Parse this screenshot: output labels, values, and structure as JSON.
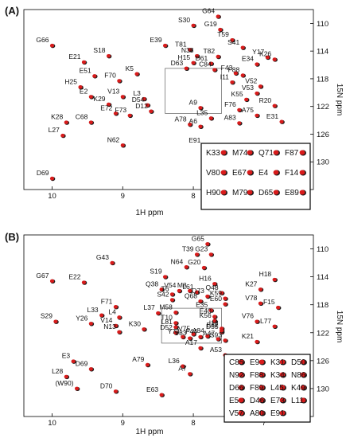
{
  "panels": [
    {
      "panel_label": "(A)",
      "chart_data": {
        "type": "scatter",
        "xlabel": "1H ppm",
        "ylabel": "15N ppm",
        "xlim": [
          10.4,
          6.3
        ],
        "ylim": [
          108,
          134
        ],
        "x_ticks": [
          "10",
          "9",
          "8",
          "7"
        ],
        "y_ticks": [
          "110",
          "114",
          "118",
          "122",
          "126",
          "130"
        ],
        "zoom_box": {
          "x": [
            8.4,
            7.6
          ],
          "y": [
            116.5,
            123
          ]
        },
        "peaks": [
          {
            "label": "G64",
            "x": 7.65,
            "y": 109.0
          },
          {
            "label": "S30",
            "x": 8.0,
            "y": 110.3
          },
          {
            "label": "G19",
            "x": 7.62,
            "y": 110.9
          },
          {
            "label": "T59",
            "x": 7.45,
            "y": 112.4
          },
          {
            "label": "G66",
            "x": 10.0,
            "y": 113.2
          },
          {
            "label": "E39",
            "x": 8.4,
            "y": 113.2
          },
          {
            "label": "T81",
            "x": 8.05,
            "y": 113.8
          },
          {
            "label": "S41",
            "x": 7.3,
            "y": 113.5
          },
          {
            "label": "Y17",
            "x": 6.95,
            "y": 114.9
          },
          {
            "label": "S18",
            "x": 9.2,
            "y": 114.7
          },
          {
            "label": "N38",
            "x": 7.95,
            "y": 114.7
          },
          {
            "label": "T82",
            "x": 7.65,
            "y": 114.8
          },
          {
            "label": "K26",
            "x": 6.85,
            "y": 115.2
          },
          {
            "label": "E21",
            "x": 9.55,
            "y": 115.6
          },
          {
            "label": "H15",
            "x": 8.0,
            "y": 115.7
          },
          {
            "label": "D61",
            "x": 7.75,
            "y": 115.8
          },
          {
            "label": "E34",
            "x": 7.1,
            "y": 115.9
          },
          {
            "label": "D63",
            "x": 8.1,
            "y": 116.5
          },
          {
            "label": "C84",
            "x": 7.7,
            "y": 116.7
          },
          {
            "label": "K5",
            "x": 8.8,
            "y": 117.3
          },
          {
            "label": "F43",
            "x": 7.4,
            "y": 117.2
          },
          {
            "label": "E51",
            "x": 9.4,
            "y": 117.6
          },
          {
            "label": "F88",
            "x": 7.3,
            "y": 117.5
          },
          {
            "label": "F70",
            "x": 9.05,
            "y": 118.3
          },
          {
            "label": "I11",
            "x": 7.45,
            "y": 118.5
          },
          {
            "label": "H25",
            "x": 9.6,
            "y": 119.2
          },
          {
            "label": "V52",
            "x": 7.05,
            "y": 119.1
          },
          {
            "label": "V53",
            "x": 7.1,
            "y": 120.1
          },
          {
            "label": "E2",
            "x": 9.45,
            "y": 120.6
          },
          {
            "label": "V13",
            "x": 9.0,
            "y": 120.6
          },
          {
            "label": "L3",
            "x": 8.7,
            "y": 120.9
          },
          {
            "label": "K55",
            "x": 7.25,
            "y": 121.0
          },
          {
            "label": "K29",
            "x": 9.2,
            "y": 121.7
          },
          {
            "label": "D54",
            "x": 8.65,
            "y": 121.8
          },
          {
            "label": "A9",
            "x": 7.9,
            "y": 122.2
          },
          {
            "label": "R20",
            "x": 6.85,
            "y": 121.9
          },
          {
            "label": "D12",
            "x": 8.6,
            "y": 122.7
          },
          {
            "label": "F76",
            "x": 7.35,
            "y": 122.5
          },
          {
            "label": "E72",
            "x": 9.1,
            "y": 123.0
          },
          {
            "label": "F73",
            "x": 8.9,
            "y": 123.3
          },
          {
            "label": "A75",
            "x": 7.1,
            "y": 123.3
          },
          {
            "label": "L35",
            "x": 7.75,
            "y": 123.7
          },
          {
            "label": "K28",
            "x": 9.8,
            "y": 124.3
          },
          {
            "label": "C68",
            "x": 9.45,
            "y": 124.3
          },
          {
            "label": "A78",
            "x": 8.05,
            "y": 124.6
          },
          {
            "label": "A6",
            "x": 7.9,
            "y": 124.9
          },
          {
            "label": "A83",
            "x": 7.35,
            "y": 124.4
          },
          {
            "label": "E31",
            "x": 6.75,
            "y": 124.2
          },
          {
            "label": "L27",
            "x": 9.85,
            "y": 126.2
          },
          {
            "label": "N62",
            "x": 9.0,
            "y": 127.6
          },
          {
            "label": "E91",
            "x": 7.85,
            "y": 127.7
          },
          {
            "label": "D69",
            "x": 10.0,
            "y": 132.4
          }
        ],
        "inset_labels": [
          "K33",
          "M74",
          "Q71",
          "F87",
          "V80",
          "E67",
          "E4",
          "F14",
          "H90",
          "M79",
          "D65",
          "E89"
        ]
      }
    },
    {
      "panel_label": "(B)",
      "chart_data": {
        "type": "scatter",
        "xlabel": "1H ppm",
        "ylabel": "15N ppm",
        "xlim": [
          10.4,
          6.3
        ],
        "ylim": [
          108,
          134
        ],
        "x_ticks": [
          "10",
          "9",
          "8",
          "7"
        ],
        "y_ticks": [
          "110",
          "114",
          "118",
          "122",
          "126",
          "130"
        ],
        "zoom_box": {
          "x": [
            8.45,
            7.6
          ],
          "y": [
            118.5,
            123.5
          ]
        },
        "peaks": [
          {
            "label": "G65",
            "x": 7.8,
            "y": 109.3
          },
          {
            "label": "T39",
            "x": 7.95,
            "y": 110.8
          },
          {
            "label": "G23",
            "x": 7.75,
            "y": 110.8
          },
          {
            "label": "G43",
            "x": 9.15,
            "y": 112.0
          },
          {
            "label": "N64",
            "x": 8.1,
            "y": 112.6
          },
          {
            "label": "G20",
            "x": 7.85,
            "y": 112.7
          },
          {
            "label": "S19",
            "x": 8.4,
            "y": 114.0
          },
          {
            "label": "H18",
            "x": 6.85,
            "y": 114.4
          },
          {
            "label": "G67",
            "x": 10.0,
            "y": 114.6
          },
          {
            "label": "E22",
            "x": 9.55,
            "y": 114.8
          },
          {
            "label": "H16",
            "x": 7.7,
            "y": 115.0
          },
          {
            "label": "K27",
            "x": 7.05,
            "y": 115.8
          },
          {
            "label": "Q38",
            "x": 8.45,
            "y": 115.8
          },
          {
            "label": "V54",
            "x": 8.2,
            "y": 116.0
          },
          {
            "label": "M8",
            "x": 8.05,
            "y": 116.0
          },
          {
            "label": "L61",
            "x": 7.95,
            "y": 116.2
          },
          {
            "label": "Q48",
            "x": 7.6,
            "y": 116.3
          },
          {
            "label": "T6",
            "x": 8.3,
            "y": 116.5
          },
          {
            "label": "Q73",
            "x": 7.8,
            "y": 116.8
          },
          {
            "label": "K59",
            "x": 7.55,
            "y": 117.1
          },
          {
            "label": "S42",
            "x": 8.3,
            "y": 117.3
          },
          {
            "label": "Q68",
            "x": 7.9,
            "y": 117.5
          },
          {
            "label": "E60",
            "x": 7.55,
            "y": 117.9
          },
          {
            "label": "V78",
            "x": 7.05,
            "y": 117.8
          },
          {
            "label": "F71",
            "x": 9.1,
            "y": 118.3
          },
          {
            "label": "F15",
            "x": 6.8,
            "y": 118.4
          },
          {
            "label": "L37",
            "x": 8.5,
            "y": 119.2
          },
          {
            "label": "M58",
            "x": 8.25,
            "y": 119.1
          },
          {
            "label": "E35",
            "x": 7.75,
            "y": 118.8
          },
          {
            "label": "L33",
            "x": 9.3,
            "y": 119.5
          },
          {
            "label": "L4",
            "x": 9.05,
            "y": 119.8
          },
          {
            "label": "E40",
            "x": 7.7,
            "y": 119.7
          },
          {
            "label": "S29",
            "x": 9.95,
            "y": 120.4
          },
          {
            "label": "Y26",
            "x": 9.45,
            "y": 120.7
          },
          {
            "label": "V14",
            "x": 9.1,
            "y": 121.0
          },
          {
            "label": "K30",
            "x": 8.7,
            "y": 121.5
          },
          {
            "label": "L81",
            "x": 8.25,
            "y": 121.2
          },
          {
            "label": "T10",
            "x": 8.25,
            "y": 120.6
          },
          {
            "label": "K56",
            "x": 7.7,
            "y": 120.3
          },
          {
            "label": "I12",
            "x": 7.6,
            "y": 121.4
          },
          {
            "label": "V76",
            "x": 7.1,
            "y": 120.4
          },
          {
            "label": "L77",
            "x": 6.85,
            "y": 121.1
          },
          {
            "label": "N13",
            "x": 9.05,
            "y": 121.9
          },
          {
            "label": "D52",
            "x": 8.25,
            "y": 122.0
          },
          {
            "label": "V75",
            "x": 8.0,
            "y": 122.2
          },
          {
            "label": "D55",
            "x": 7.6,
            "y": 121.9
          },
          {
            "label": "E32",
            "x": 7.6,
            "y": 121.7
          },
          {
            "label": "Y74",
            "x": 8.15,
            "y": 122.6
          },
          {
            "label": "V83",
            "x": 8.05,
            "y": 122.8
          },
          {
            "label": "F44",
            "x": 7.9,
            "y": 122.6
          },
          {
            "label": "A84",
            "x": 7.8,
            "y": 122.5
          },
          {
            "label": "A47",
            "x": 7.65,
            "y": 122.9
          },
          {
            "label": "S93",
            "x": 7.55,
            "y": 123.1
          },
          {
            "label": "K21",
            "x": 7.1,
            "y": 123.3
          },
          {
            "label": "A17",
            "x": 7.9,
            "y": 124.2
          },
          {
            "label": "A53",
            "x": 7.55,
            "y": 125.2
          },
          {
            "label": "E3",
            "x": 9.7,
            "y": 126.1
          },
          {
            "label": "A79",
            "x": 8.65,
            "y": 126.6
          },
          {
            "label": "L36",
            "x": 8.15,
            "y": 126.8
          },
          {
            "label": "D69",
            "x": 9.45,
            "y": 127.2
          },
          {
            "label": "A7",
            "x": 8.05,
            "y": 127.9
          },
          {
            "label": "L28",
            "x": 9.8,
            "y": 128.3
          },
          {
            "label": "(W90)",
            "x": 9.65,
            "y": 130.0
          },
          {
            "label": "D70",
            "x": 9.1,
            "y": 130.4
          },
          {
            "label": "E63",
            "x": 8.45,
            "y": 130.9
          }
        ],
        "inset_labels": [
          "C85",
          "E9",
          "K31",
          "D50",
          "N92",
          "F88",
          "K34",
          "N86",
          "D66",
          "F89",
          "L45",
          "K49",
          "E5",
          "D46",
          "E73",
          "L11",
          "V57",
          "A80",
          "E91"
        ]
      }
    }
  ]
}
